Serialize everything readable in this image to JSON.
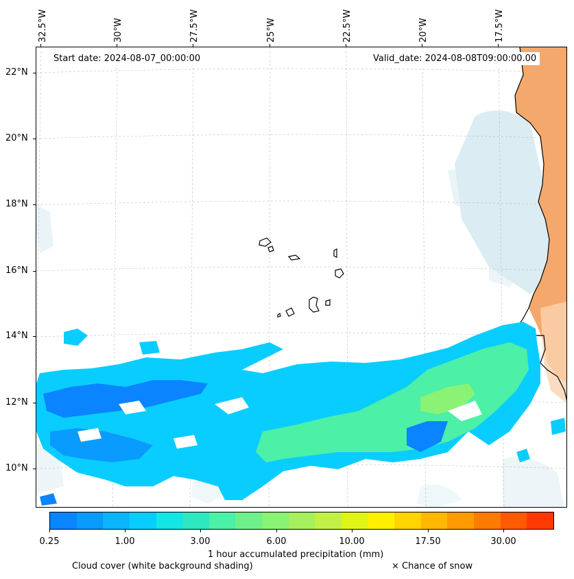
{
  "map": {
    "start_date": "Start date: 2024-08-07_00:00:00",
    "valid_date": "Valid_date: 2024-08-08T09:00:00.00",
    "longitude_labels": [
      "32.5°W",
      "30°W",
      "27.5°W",
      "25°W",
      "22.5°W",
      "20°W",
      "17.5°W"
    ],
    "latitude_labels": [
      "22°N",
      "20°N",
      "18°N",
      "16°N",
      "14°N",
      "12°N",
      "10°N"
    ],
    "land_color": "#f4a86c",
    "cloud_color": "#cfe6ee",
    "features": [
      "coastline-west-africa",
      "cape-verde-islands",
      "precipitation-band",
      "cloud-cover-shading"
    ]
  },
  "colorbar": {
    "label": "1 hour accumulated precipitation (mm)",
    "tick_labels": [
      "0.25",
      "1.00",
      "3.00",
      "6.00",
      "10.00",
      "17.50",
      "30.00"
    ],
    "colors": [
      "#0a84ff",
      "#0a9bff",
      "#0ab4ff",
      "#0acdff",
      "#14e6e6",
      "#2ee6c0",
      "#4cf0a6",
      "#6ef08a",
      "#8af274",
      "#a6f05e",
      "#c2f048",
      "#e0f516",
      "#fff000",
      "#ffd400",
      "#ffb800",
      "#ff9a00",
      "#ff7a00",
      "#ff5a00",
      "#ff3a00"
    ]
  },
  "legend": {
    "cloud_note": "Cloud cover (white background shading)",
    "snow_note": "× Chance of snow"
  }
}
